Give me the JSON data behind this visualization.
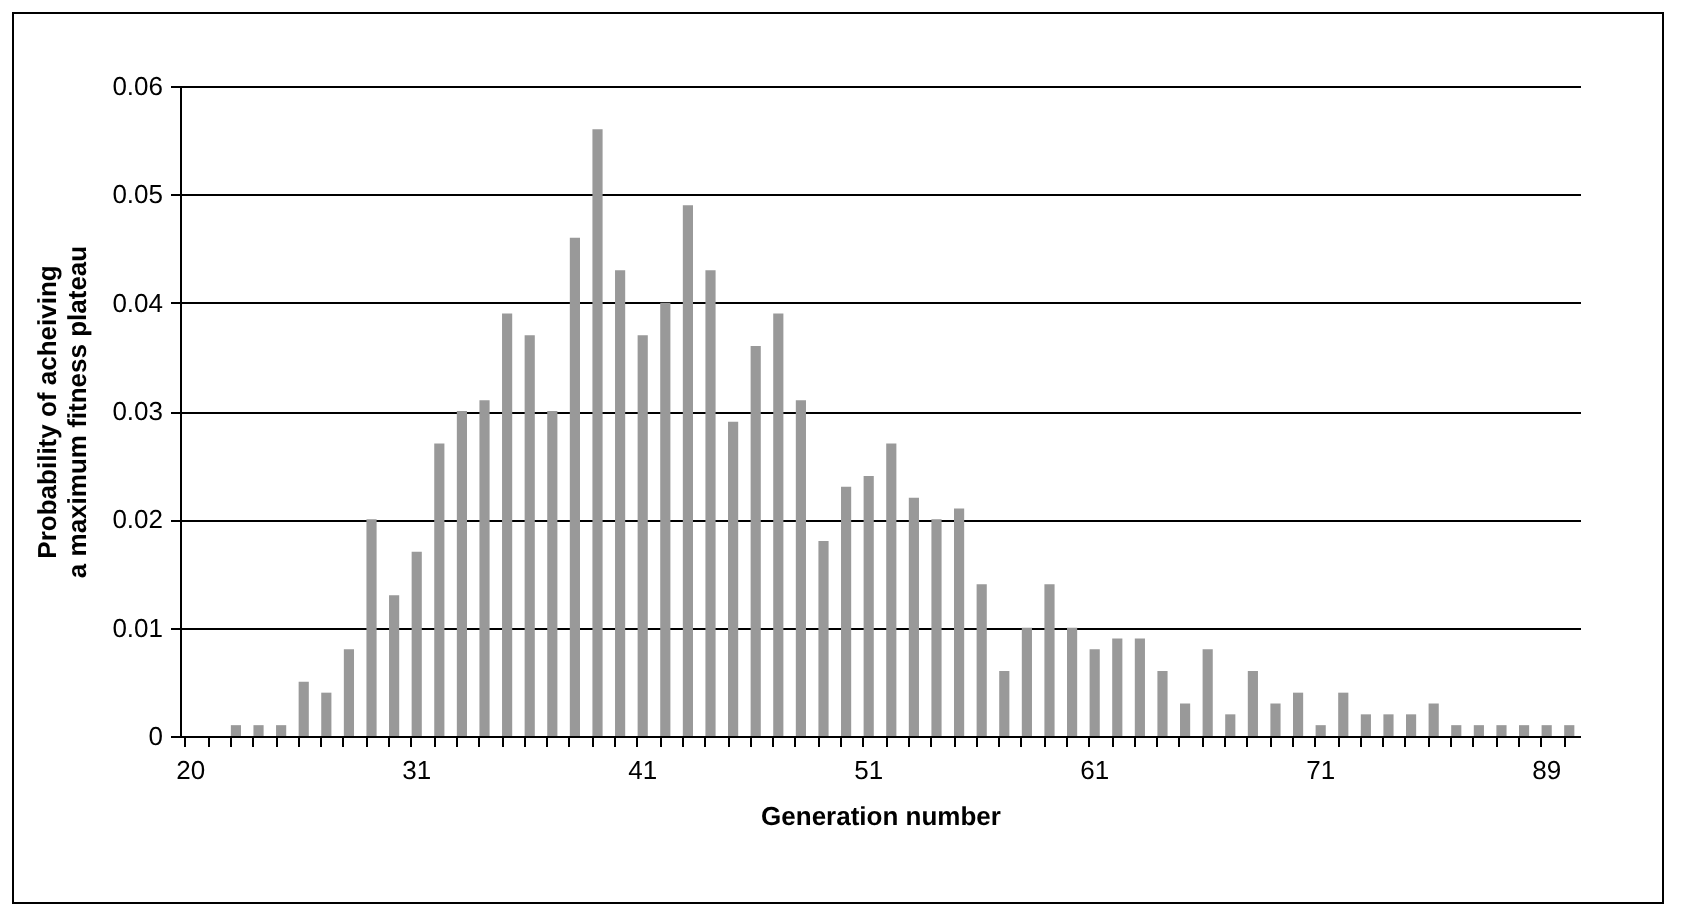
{
  "chart_data": {
    "type": "bar",
    "xlabel": "Generation number",
    "ylabel": "Probability of acheiving a maximum fitness plateau",
    "categories": [
      "20",
      null,
      null,
      null,
      null,
      null,
      null,
      null,
      null,
      null,
      "31",
      null,
      null,
      null,
      null,
      null,
      null,
      null,
      null,
      null,
      "41",
      null,
      null,
      null,
      null,
      null,
      null,
      null,
      null,
      null,
      "51",
      null,
      null,
      null,
      null,
      null,
      null,
      null,
      null,
      null,
      "61",
      null,
      null,
      null,
      null,
      null,
      null,
      null,
      null,
      null,
      "71",
      null,
      null,
      null,
      null,
      null,
      null,
      null,
      null,
      null,
      "89",
      null
    ],
    "values": [
      0,
      0,
      0.001,
      0.001,
      0.001,
      0.005,
      0.004,
      0.008,
      0.02,
      0.013,
      0.017,
      0.027,
      0.03,
      0.031,
      0.039,
      0.037,
      0.03,
      0.046,
      0.056,
      0.043,
      0.037,
      0.04,
      0.049,
      0.043,
      0.029,
      0.036,
      0.039,
      0.031,
      0.018,
      0.023,
      0.024,
      0.027,
      0.022,
      0.02,
      0.021,
      0.014,
      0.006,
      0.01,
      0.014,
      0.01,
      0.008,
      0.009,
      0.009,
      0.006,
      0.003,
      0.008,
      0.002,
      0.006,
      0.003,
      0.004,
      0.001,
      0.004,
      0.002,
      0.002,
      0.002,
      0.003,
      0.001,
      0.001,
      0.001,
      0.001,
      0.001,
      0.001
    ],
    "color": "#999999",
    "ylim": [
      0,
      0.06
    ],
    "yticks": [
      0,
      0.01,
      0.02,
      0.03,
      0.04,
      0.05,
      0.06
    ],
    "grid": "y"
  }
}
